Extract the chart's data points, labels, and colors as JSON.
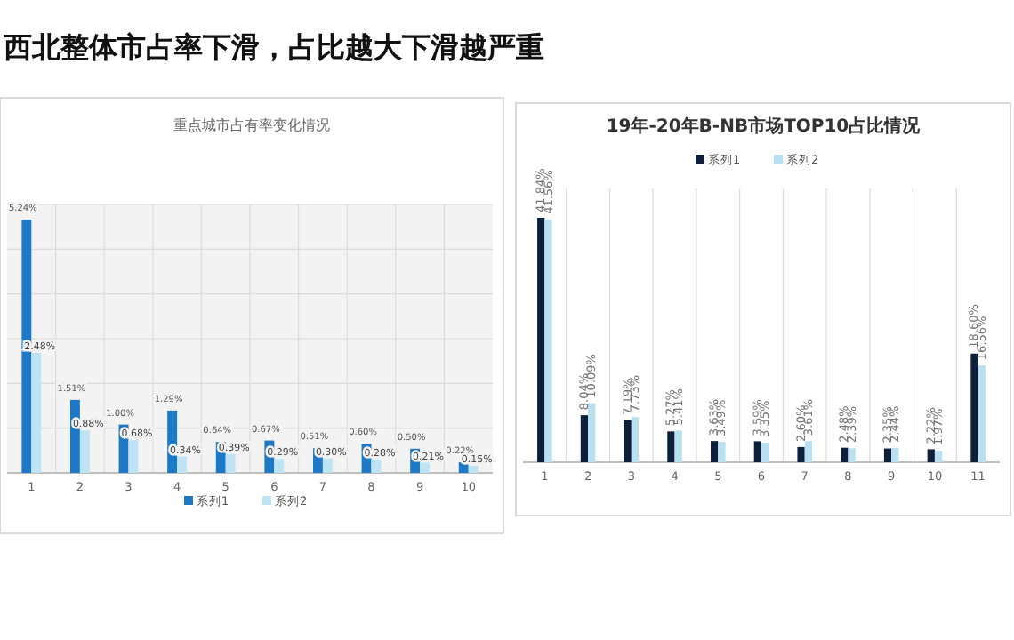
{
  "chart_data": [
    {
      "type": "other",
      "title": "西北整体市占率下滑，占比越大下滑越严重"
    },
    {
      "type": "bar",
      "title": "重点城市占有率变化情况",
      "categories": [
        "1",
        "2",
        "3",
        "4",
        "5",
        "6",
        "7",
        "8",
        "9",
        "10"
      ],
      "grid": true,
      "legend": "bottom",
      "data_labels": true,
      "series": [
        {
          "name": "系列1",
          "color": "#1e78c8",
          "values": [
            5.24,
            1.51,
            1.0,
            1.29,
            0.64,
            0.67,
            0.51,
            0.6,
            0.5,
            0.22
          ],
          "value_labels": [
            "5.24%",
            "1.51%",
            "1.00%",
            "1.29%",
            "0.64%",
            "0.67%",
            "0.51%",
            "0.60%",
            "0.50%",
            "0.22%"
          ]
        },
        {
          "name": "系列2",
          "color": "#bde3f5",
          "values": [
            2.48,
            0.88,
            0.68,
            0.34,
            0.39,
            0.29,
            0.3,
            0.28,
            0.21,
            0.15
          ],
          "value_labels": [
            "2.48%",
            "0.88%",
            "0.68%",
            "0.34%",
            "0.39%",
            "0.29%",
            "0.30%",
            "0.28%",
            "0.21%",
            "0.15%"
          ]
        }
      ]
    },
    {
      "type": "bar",
      "title": "19年-20年B-NB市场TOP10占比情况",
      "categories": [
        "1",
        "2",
        "3",
        "4",
        "5",
        "6",
        "7",
        "8",
        "9",
        "10",
        "11"
      ],
      "grid": "x",
      "legend": "top",
      "data_labels": true,
      "series": [
        {
          "name": "系列1",
          "color": "#0d1f3a",
          "values": [
            41.84,
            8.04,
            7.19,
            5.27,
            3.63,
            3.59,
            2.6,
            2.48,
            2.35,
            2.22,
            18.6
          ],
          "value_labels": [
            "41.84%",
            "8.04%",
            "7.19%",
            "5.27%",
            "3.63%",
            "3.59%",
            "2.60%",
            "2.48%",
            "2.35%",
            "2.22%",
            "18.60%"
          ]
        },
        {
          "name": "系列2",
          "color": "#b8e0f0",
          "values": [
            41.56,
            10.09,
            7.73,
            5.41,
            3.49,
            3.35,
            3.61,
            2.39,
            2.44,
            1.97,
            16.56
          ],
          "value_labels": [
            "41.56%",
            "10.09%",
            "7.73%",
            "5.41%",
            "3.49%",
            "3.35%",
            "3.61%",
            "2.39%",
            "2.44%",
            "1.97%",
            "16.56%"
          ]
        }
      ]
    }
  ]
}
